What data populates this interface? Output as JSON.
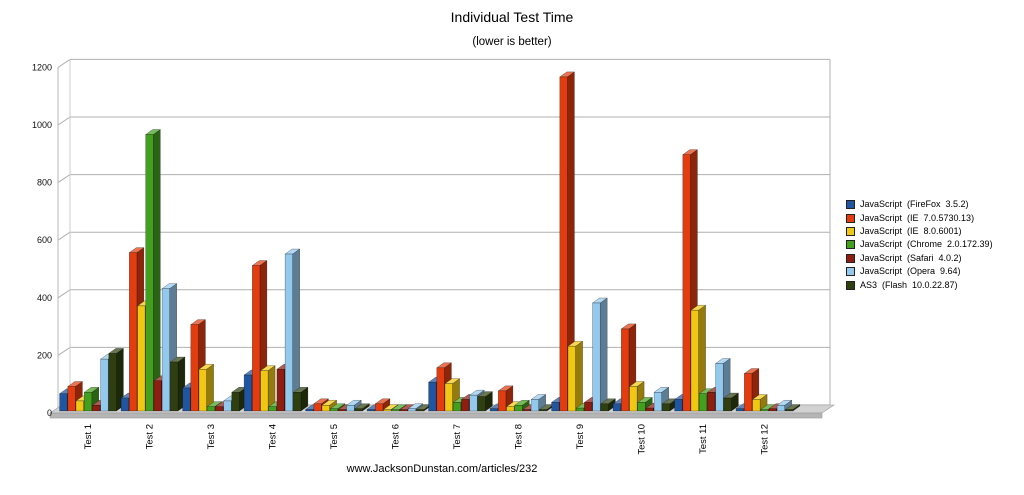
{
  "page": {
    "title": "Individual Test Time",
    "subtitle": "(lower is better)",
    "footer": "www.JacksonDunstan.com/articles/232"
  },
  "chart_data": {
    "type": "bar",
    "projection": "3d",
    "title": "Individual Test Time",
    "subtitle": "(lower is better)",
    "footer": "www.JacksonDunstan.com/articles/232",
    "categories": [
      "Test 1",
      "Test 2",
      "Test 3",
      "Test 4",
      "Test 5",
      "Test 6",
      "Test 7",
      "Test 8",
      "Test 9",
      "Test 10",
      "Test 11",
      "Test 12"
    ],
    "series": [
      {
        "name": "JavaScript  (FireFox  3.5.2)",
        "color": "#2056a0",
        "values": [
          60,
          45,
          80,
          125,
          5,
          3,
          100,
          8,
          30,
          25,
          40,
          8
        ]
      },
      {
        "name": "JavaScript  (IE  7.0.5730.13)",
        "color": "#e23c0f",
        "values": [
          85,
          550,
          300,
          505,
          25,
          25,
          150,
          70,
          1160,
          285,
          890,
          130
        ]
      },
      {
        "name": "JavaScript  (IE  8.0.6001)",
        "color": "#f0c713",
        "values": [
          35,
          365,
          145,
          140,
          20,
          5,
          95,
          15,
          225,
          85,
          350,
          40
        ]
      },
      {
        "name": "JavaScript  (Chrome  2.0.172.39)",
        "color": "#43a01e",
        "values": [
          65,
          960,
          15,
          15,
          8,
          3,
          30,
          20,
          10,
          30,
          60,
          5
        ]
      },
      {
        "name": "JavaScript  (Safari  4.0.2)",
        "color": "#8e1d12",
        "values": [
          20,
          105,
          15,
          145,
          5,
          3,
          40,
          5,
          30,
          10,
          65,
          8
        ]
      },
      {
        "name": "JavaScript  (Opera  9.64)",
        "color": "#94c9ee",
        "values": [
          180,
          425,
          35,
          545,
          20,
          8,
          55,
          40,
          375,
          65,
          165,
          20
        ]
      },
      {
        "name": "AS3  (Flash  10.0.22.87)",
        "color": "#2f3f10",
        "values": [
          200,
          170,
          65,
          65,
          8,
          5,
          50,
          5,
          25,
          25,
          45,
          5
        ]
      }
    ],
    "y_axis": {
      "min": 0,
      "max": 1200,
      "tick_interval": 200,
      "ticks": [
        0,
        200,
        400,
        600,
        800,
        1000,
        1200
      ]
    },
    "grid": true,
    "legend_position": "right"
  }
}
